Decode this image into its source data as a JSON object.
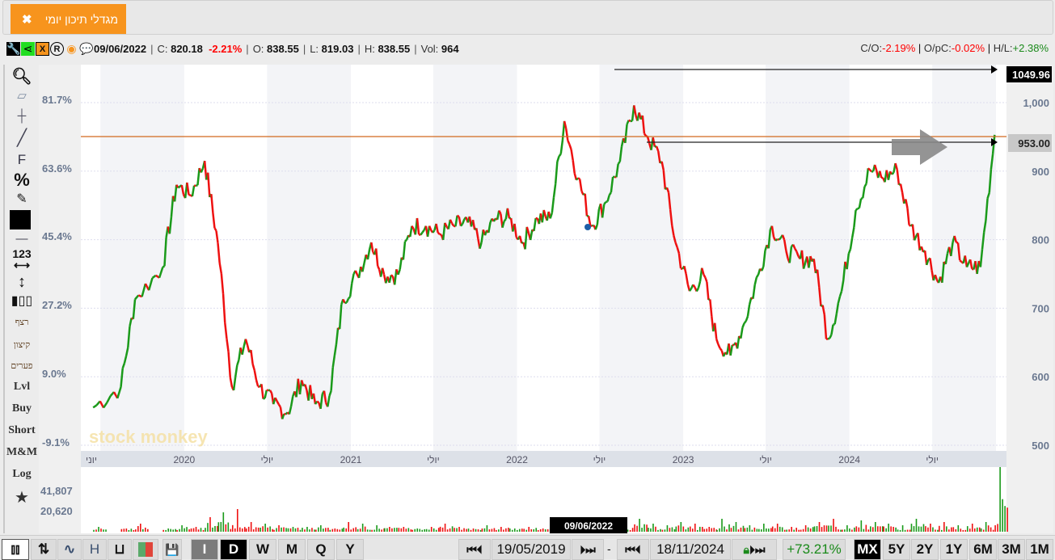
{
  "tab": {
    "title": "מגדלי תיכון יומי",
    "close": "✖"
  },
  "info": {
    "date": "09/06/2022",
    "c_label": "C:",
    "close": "820.18",
    "change": "-2.21%",
    "o_label": "O:",
    "open": "838.55",
    "l_label": "L:",
    "low": "819.03",
    "h_label": "H:",
    "high": "838.55",
    "vol_label": "Vol:",
    "volume": "964",
    "co_label": "C/O:",
    "co": "-2.19%",
    "opc_label": "O/pC:",
    "opc": "-0.02%",
    "hl_label": "H/L:",
    "hl": "+2.38%"
  },
  "toolbar_left": {
    "items": [
      "zoom",
      "eraser",
      "crosshair",
      "line",
      "F",
      "%",
      "edit",
      "color",
      "line-style",
      "123",
      "vertical",
      "candles",
      "רצף",
      "קיצון",
      "פערים",
      "Lvl",
      "Buy",
      "Short",
      "M&M",
      "Log",
      "star"
    ]
  },
  "colors": {
    "up": "#1a9a1a",
    "down": "#ee1111",
    "accent": "#f7941d",
    "hline": "#d2691e",
    "band": "#f3f4f7",
    "axisband": "#dde1e8"
  },
  "chart_data": {
    "type": "line",
    "x": [
      "2019-06",
      "2019-08",
      "2019-09",
      "2019-11",
      "2019-12",
      "2020-01",
      "2020-02",
      "2020-03",
      "2020-04",
      "2020-05",
      "2020-06",
      "2020-07",
      "2020-08",
      "2020-09",
      "2020-10",
      "2020-11",
      "2020-12",
      "2021-01",
      "2021-02",
      "2021-03",
      "2021-04",
      "2021-05",
      "2021-06",
      "2021-07",
      "2021-08",
      "2021-09",
      "2021-10",
      "2021-11",
      "2021-12",
      "2022-01",
      "2022-02",
      "2022-03",
      "2022-04",
      "2022-05",
      "2022-06",
      "2022-07",
      "2022-08",
      "2022-09",
      "2022-10",
      "2022-11",
      "2022-12",
      "2023-01",
      "2023-02",
      "2023-03",
      "2023-04",
      "2023-05",
      "2023-06",
      "2023-07",
      "2023-08",
      "2023-09",
      "2023-10",
      "2023-11",
      "2023-12",
      "2024-01",
      "2024-02",
      "2024-03",
      "2024-04",
      "2024-05",
      "2024-06",
      "2024-07",
      "2024-08",
      "2024-09",
      "2024-10",
      "2024-11"
    ],
    "values": [
      555,
      585,
      713,
      760,
      880,
      865,
      915,
      795,
      585,
      655,
      585,
      560,
      548,
      595,
      560,
      572,
      713,
      749,
      796,
      749,
      749,
      820,
      820,
      808,
      820,
      825,
      796,
      831,
      831,
      796,
      831,
      831,
      973,
      890,
      820,
      855,
      914,
      996,
      950,
      914,
      796,
      725,
      749,
      655,
      631,
      678,
      749,
      820,
      784,
      772,
      772,
      655,
      725,
      843,
      902,
      890,
      902,
      820,
      784,
      737,
      796,
      760,
      760,
      953
    ],
    "volume": [
      3,
      2,
      5,
      2,
      4,
      3,
      9,
      12,
      14,
      6,
      5,
      4,
      3,
      3,
      4,
      2,
      6,
      5,
      4,
      3,
      3,
      2,
      3,
      5,
      3,
      2,
      4,
      3,
      2,
      3,
      2,
      3,
      9,
      5,
      4,
      3,
      4,
      8,
      5,
      4,
      6,
      5,
      3,
      8,
      6,
      4,
      5,
      5,
      3,
      4,
      6,
      8,
      4,
      7,
      6,
      5,
      4,
      8,
      5,
      6,
      4,
      5,
      6,
      40
    ],
    "x_ticks": [
      "יוני",
      "2020",
      "יולי",
      "2021",
      "יולי",
      "2022",
      "יולי",
      "2023",
      "יולי",
      "2024",
      "יולי"
    ],
    "y_ticks_right": [
      "1,000",
      "900",
      "800",
      "700",
      "600",
      "500"
    ],
    "y_ticks_left": [
      "81.7%",
      "63.6%",
      "45.4%",
      "27.2%",
      "9.0%",
      "-9.1%"
    ],
    "volume_ticks": [
      "41,807",
      "20,620"
    ],
    "ylim": [
      500,
      1050
    ],
    "price_labels": {
      "high": "1049.96",
      "last": "953.00"
    },
    "crosshair_date": "09/06/2022",
    "watermark": "stock monkey"
  },
  "bottom": {
    "intervals": [
      "I",
      "D",
      "W",
      "M",
      "Q",
      "Y"
    ],
    "start_date": "19/05/2019",
    "end_date": "18/11/2024",
    "dash": "-",
    "change": "+73.21%",
    "ranges": [
      "MX",
      "5Y",
      "2Y",
      "1Y",
      "6M",
      "3M",
      "1M"
    ]
  }
}
